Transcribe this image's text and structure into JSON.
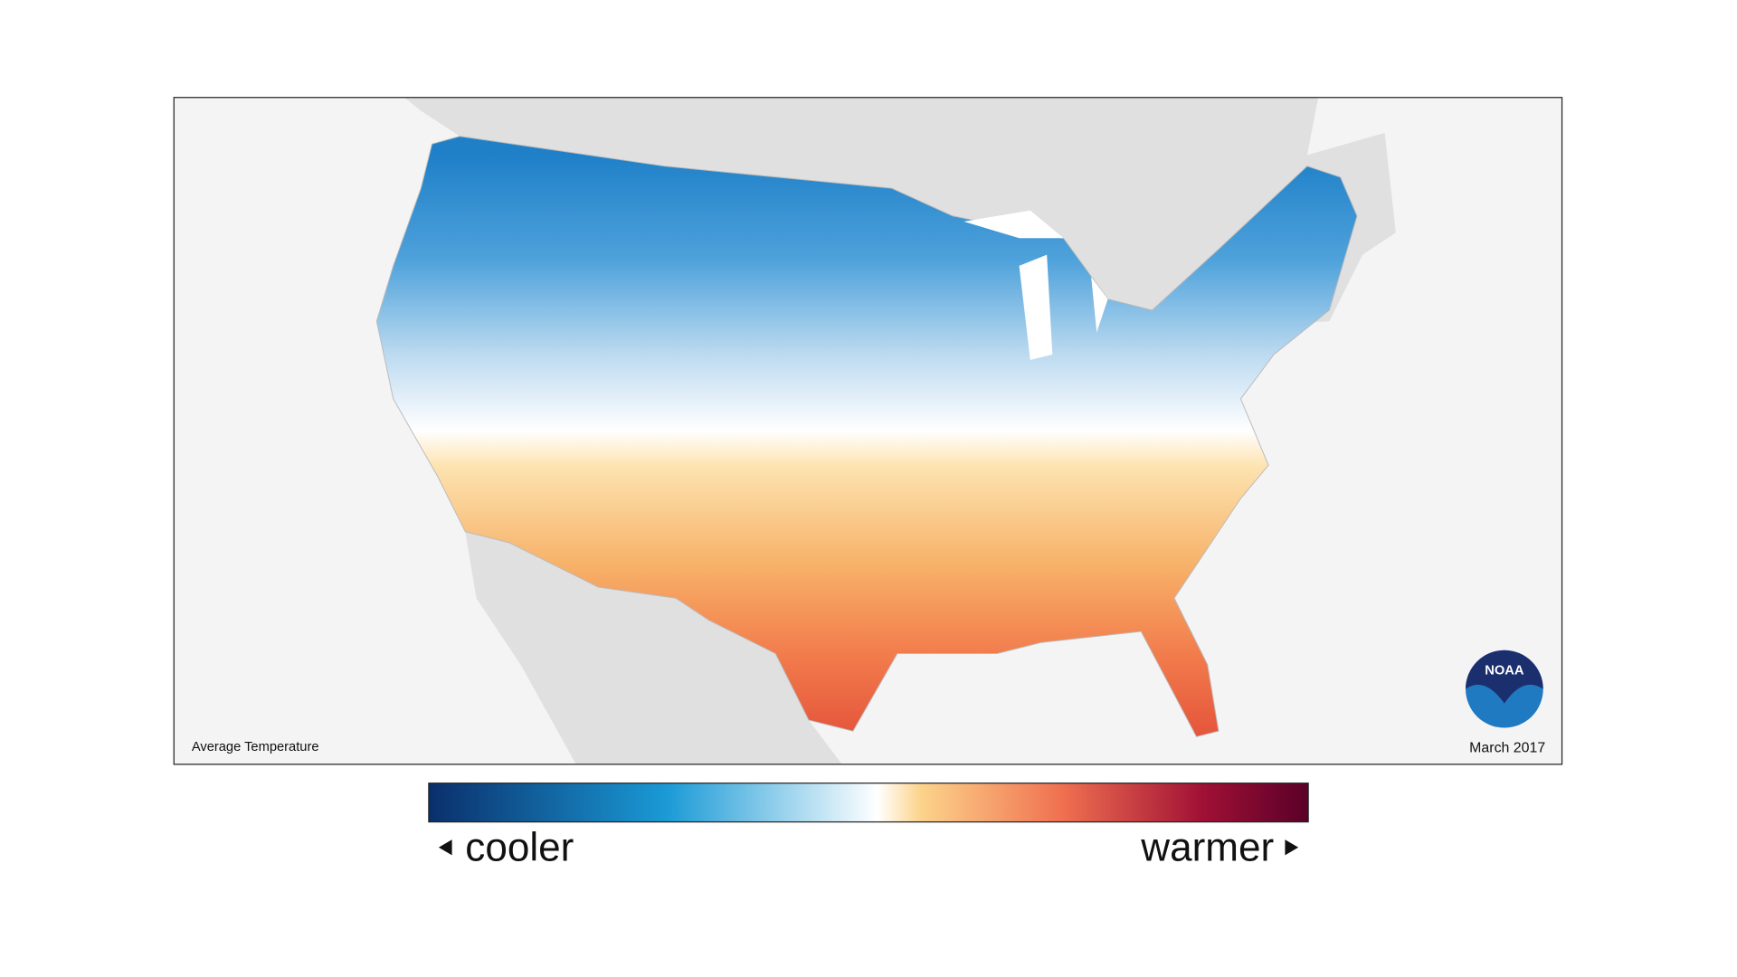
{
  "map": {
    "caption_left": "Average Temperature",
    "caption_right": "March 2017",
    "logo": "NOAA"
  },
  "legend": {
    "left_label": "cooler",
    "right_label": "warmer"
  }
}
